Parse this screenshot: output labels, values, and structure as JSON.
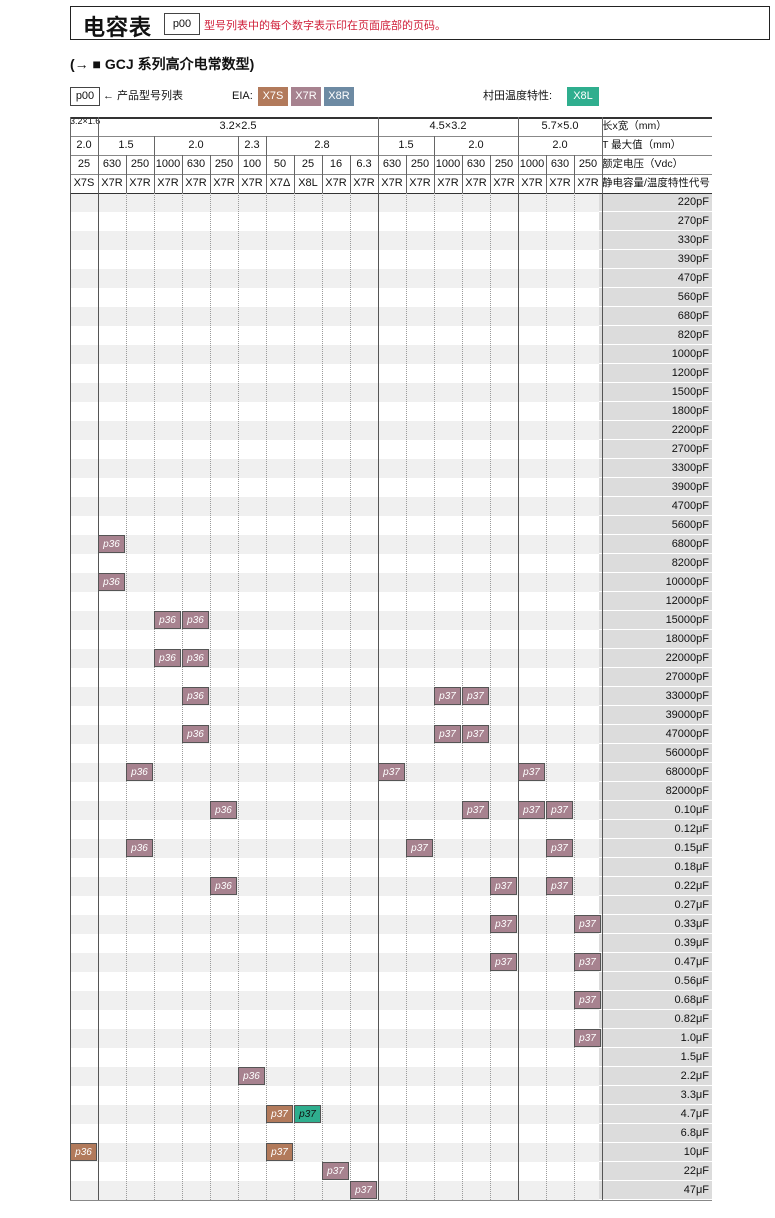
{
  "header": {
    "title": "电容表",
    "chip": "p00",
    "note": "型号列表中的每个数字表示印在页面底部的页码。"
  },
  "subtitle": "(→ ■ GCJ 系列高介电常数型)",
  "legend": {
    "page_chip": "p00",
    "page_text": "← 产品型号列表",
    "eia_label": "EIA:",
    "eia_codes": [
      {
        "label": "X7S",
        "color": "#b27a5b"
      },
      {
        "label": "X7R",
        "color": "#a7828f"
      },
      {
        "label": "X8R",
        "color": "#6d8aa3"
      }
    ],
    "murata_label": "村田温度特性:",
    "murata_code": {
      "label": "X8L",
      "color": "#2fae8e"
    }
  },
  "table": {
    "header_labels": [
      "长x宽（mm）",
      "T 最大值（mm）",
      "额定电压（Vdc）",
      "静电容量/温度特性代号"
    ],
    "sizes": [
      {
        "label": "3.2×1.6",
        "span": 1
      },
      {
        "label": "3.2×2.5",
        "span": 10
      },
      {
        "label": "4.5×3.2",
        "span": 5
      },
      {
        "label": "5.7×5.0",
        "span": 3
      }
    ],
    "thickness": [
      {
        "label": "2.0",
        "span": 1
      },
      {
        "label": "1.5",
        "span": 2
      },
      {
        "label": "2.0",
        "span": 3
      },
      {
        "label": "2.3",
        "span": 1
      },
      {
        "label": "2.8",
        "span": 4
      },
      {
        "label": "1.5",
        "span": 2
      },
      {
        "label": "2.0",
        "span": 3
      },
      {
        "label": "2.0",
        "span": 3
      }
    ],
    "voltages": [
      "25",
      "630",
      "250",
      "1000",
      "630",
      "250",
      "100",
      "50",
      "25",
      "16",
      "6.3",
      "630",
      "250",
      "1000",
      "630",
      "250",
      "1000",
      "630",
      "250"
    ],
    "temp_codes": [
      "X7S",
      "X7R",
      "X7R",
      "X7R",
      "X7R",
      "X7R",
      "X7R",
      "X7Δ",
      "X8L",
      "X7R",
      "X7R",
      "X7R",
      "X7R",
      "X7R",
      "X7R",
      "X7R",
      "X7R",
      "X7R",
      "X7R"
    ],
    "capacitances": [
      "220pF",
      "270pF",
      "330pF",
      "390pF",
      "470pF",
      "560pF",
      "680pF",
      "820pF",
      "1000pF",
      "1200pF",
      "1500pF",
      "1800pF",
      "2200pF",
      "2700pF",
      "3300pF",
      "3900pF",
      "4700pF",
      "5600pF",
      "6800pF",
      "8200pF",
      "10000pF",
      "12000pF",
      "15000pF",
      "18000pF",
      "22000pF",
      "27000pF",
      "33000pF",
      "39000pF",
      "47000pF",
      "56000pF",
      "68000pF",
      "82000pF",
      "0.10μF",
      "0.12μF",
      "0.15μF",
      "0.18μF",
      "0.22μF",
      "0.27μF",
      "0.33μF",
      "0.39μF",
      "0.47μF",
      "0.56μF",
      "0.68μF",
      "0.82μF",
      "1.0μF",
      "1.5μF",
      "2.2μF",
      "3.3μF",
      "4.7μF",
      "6.8μF",
      "10μF",
      "22μF",
      "47μF"
    ],
    "entries": [
      {
        "row": 18,
        "col": 1,
        "label": "p36",
        "code": "x7r"
      },
      {
        "row": 20,
        "col": 1,
        "label": "p36",
        "code": "x7r"
      },
      {
        "row": 22,
        "col": 3,
        "label": "p36",
        "code": "x7r"
      },
      {
        "row": 22,
        "col": 4,
        "label": "p36",
        "code": "x7r"
      },
      {
        "row": 24,
        "col": 3,
        "label": "p36",
        "code": "x7r"
      },
      {
        "row": 24,
        "col": 4,
        "label": "p36",
        "code": "x7r"
      },
      {
        "row": 26,
        "col": 4,
        "label": "p36",
        "code": "x7r"
      },
      {
        "row": 26,
        "col": 13,
        "label": "p37",
        "code": "x7r"
      },
      {
        "row": 26,
        "col": 14,
        "label": "p37",
        "code": "x7r"
      },
      {
        "row": 28,
        "col": 4,
        "label": "p36",
        "code": "x7r"
      },
      {
        "row": 28,
        "col": 13,
        "label": "p37",
        "code": "x7r"
      },
      {
        "row": 28,
        "col": 14,
        "label": "p37",
        "code": "x7r"
      },
      {
        "row": 30,
        "col": 2,
        "label": "p36",
        "code": "x7r"
      },
      {
        "row": 30,
        "col": 11,
        "label": "p37",
        "code": "x7r"
      },
      {
        "row": 30,
        "col": 16,
        "label": "p37",
        "code": "x7r"
      },
      {
        "row": 32,
        "col": 5,
        "label": "p36",
        "code": "x7r"
      },
      {
        "row": 32,
        "col": 14,
        "label": "p37",
        "code": "x7r"
      },
      {
        "row": 32,
        "col": 16,
        "label": "p37",
        "code": "x7r"
      },
      {
        "row": 32,
        "col": 17,
        "label": "p37",
        "code": "x7r"
      },
      {
        "row": 34,
        "col": 2,
        "label": "p36",
        "code": "x7r"
      },
      {
        "row": 34,
        "col": 12,
        "label": "p37",
        "code": "x7r"
      },
      {
        "row": 34,
        "col": 17,
        "label": "p37",
        "code": "x7r"
      },
      {
        "row": 36,
        "col": 5,
        "label": "p36",
        "code": "x7r"
      },
      {
        "row": 36,
        "col": 15,
        "label": "p37",
        "code": "x7r"
      },
      {
        "row": 36,
        "col": 17,
        "label": "p37",
        "code": "x7r"
      },
      {
        "row": 38,
        "col": 15,
        "label": "p37",
        "code": "x7r"
      },
      {
        "row": 38,
        "col": 18,
        "label": "p37",
        "code": "x7r"
      },
      {
        "row": 40,
        "col": 15,
        "label": "p37",
        "code": "x7r"
      },
      {
        "row": 40,
        "col": 18,
        "label": "p37",
        "code": "x7r"
      },
      {
        "row": 42,
        "col": 18,
        "label": "p37",
        "code": "x7r"
      },
      {
        "row": 44,
        "col": 18,
        "label": "p37",
        "code": "x7r"
      },
      {
        "row": 46,
        "col": 6,
        "label": "p36",
        "code": "x7r"
      },
      {
        "row": 48,
        "col": 7,
        "label": "p37",
        "code": "x7s"
      },
      {
        "row": 48,
        "col": 8,
        "label": "p37",
        "code": "x8l"
      },
      {
        "row": 50,
        "col": 0,
        "label": "p36",
        "code": "x7s"
      },
      {
        "row": 50,
        "col": 7,
        "label": "p37",
        "code": "x7s"
      },
      {
        "row": 51,
        "col": 9,
        "label": "p37",
        "code": "x7r"
      },
      {
        "row": 52,
        "col": 10,
        "label": "p37",
        "code": "x7r"
      }
    ]
  }
}
